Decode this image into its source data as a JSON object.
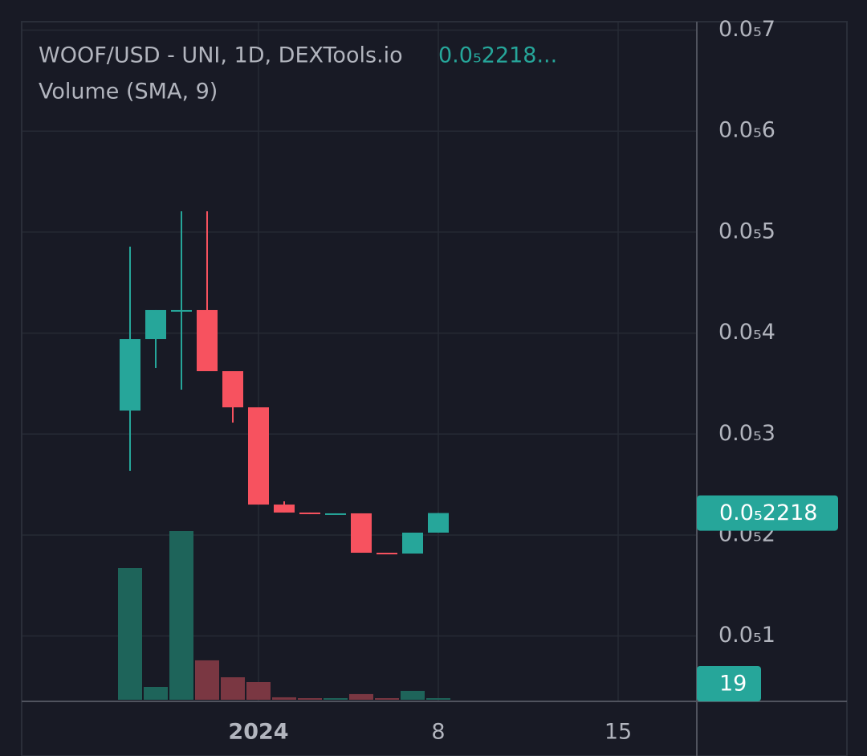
{
  "chart_data": {
    "type": "candlestick",
    "title": "WOOF/USD - UNI, 1D, DEXTools.io",
    "header_price": "0.0₅2218...",
    "subtitle": "Volume (SMA, 9)",
    "up_color": "#26a69a",
    "down_color": "#f7525f",
    "volume_up_color": "#1e645a",
    "volume_down_color": "#7a3742",
    "open": [
      3.233e-06,
      3.941e-06,
      4.228e-06,
      4.228e-06,
      3.623e-06,
      3.265e-06,
      2.302e-06,
      2.223e-06,
      2.207e-06,
      2.215e-06,
      1.825e-06,
      1.817e-06,
      2.024e-06
    ],
    "high": [
      4.856e-06,
      4.228e-06,
      5.206e-06,
      5.206e-06,
      3.623e-06,
      3.265e-06,
      2.334e-06,
      2.223e-06,
      2.215e-06,
      2.215e-06,
      1.825e-06,
      2.024e-06,
      2.218e-06
    ],
    "low": [
      2.636e-06,
      3.655e-06,
      3.44e-06,
      3.623e-06,
      3.114e-06,
      2.302e-06,
      2.223e-06,
      2.207e-06,
      2.207e-06,
      1.825e-06,
      1.817e-06,
      1.817e-06,
      2.024e-06
    ],
    "close": [
      3.941e-06,
      4.228e-06,
      4.228e-06,
      3.623e-06,
      3.265e-06,
      2.302e-06,
      2.223e-06,
      2.207e-06,
      2.215e-06,
      1.825e-06,
      1.817e-06,
      2.024e-06,
      2.218e-06
    ],
    "volume": [
      1558,
      152,
      1995,
      466,
      266,
      209,
      29,
      19,
      19,
      67,
      19,
      105,
      19
    ],
    "ylim": [
      3.53e-07,
      7.084e-06
    ],
    "yticks": [
      {
        "value": 1e-06,
        "label": "0.0₅1"
      },
      {
        "value": 2e-06,
        "label": "0.0₅2"
      },
      {
        "value": 3e-06,
        "label": "0.0₅3"
      },
      {
        "value": 4e-06,
        "label": "0.0₅4"
      },
      {
        "value": 5e-06,
        "label": "0.0₅5"
      },
      {
        "value": 6e-06,
        "label": "0.0₅6"
      },
      {
        "value": 7e-06,
        "label": "0.0₅7"
      }
    ],
    "xticks": [
      {
        "value": 5,
        "label": "2024"
      },
      {
        "value": 12,
        "label": "8"
      },
      {
        "value": 19,
        "label": "15"
      }
    ],
    "last_price": {
      "value": 2.218e-06,
      "label": "0.0₅2218"
    },
    "grid": true
  }
}
